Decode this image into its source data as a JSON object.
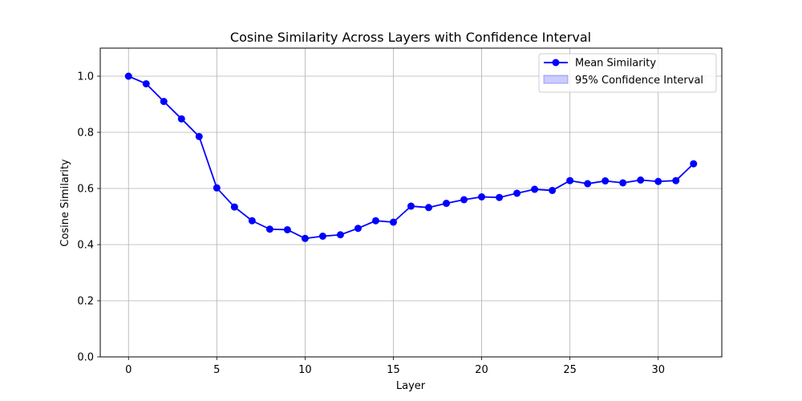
{
  "chart_data": {
    "type": "line",
    "title": "Cosine Similarity Across Layers with Confidence Interval",
    "xlabel": "Layer",
    "ylabel": "Cosine Similarity",
    "xlim": [
      -1.6,
      33.6
    ],
    "ylim": [
      0,
      1.1
    ],
    "xticks": [
      0,
      5,
      10,
      15,
      20,
      25,
      30
    ],
    "yticks": [
      0.0,
      0.2,
      0.4,
      0.6,
      0.8,
      1.0
    ],
    "xtick_labels": [
      "0",
      "5",
      "10",
      "15",
      "20",
      "25",
      "30"
    ],
    "ytick_labels": [
      "0.0",
      "0.2",
      "0.4",
      "0.6",
      "0.8",
      "1.0"
    ],
    "grid": true,
    "legend_position": "top-right",
    "x": [
      0,
      1,
      2,
      3,
      4,
      5,
      6,
      7,
      8,
      9,
      10,
      11,
      12,
      13,
      14,
      15,
      16,
      17,
      18,
      19,
      20,
      21,
      22,
      23,
      24,
      25,
      26,
      27,
      28,
      29,
      30,
      31,
      32
    ],
    "series": [
      {
        "name": "Mean Similarity",
        "color": "#0000ff",
        "marker": "circle",
        "values": [
          1.0,
          0.973,
          0.91,
          0.848,
          0.785,
          0.602,
          0.534,
          0.485,
          0.455,
          0.453,
          0.422,
          0.43,
          0.435,
          0.458,
          0.485,
          0.48,
          0.537,
          0.532,
          0.547,
          0.56,
          0.57,
          0.568,
          0.583,
          0.597,
          0.593,
          0.628,
          0.617,
          0.627,
          0.62,
          0.63,
          0.625,
          0.628,
          0.688
        ]
      }
    ],
    "confidence_band": {
      "name": "95% Confidence Interval",
      "color": "#0000ff",
      "lower": [
        1.0,
        0.973,
        0.91,
        0.848,
        0.785,
        0.602,
        0.534,
        0.485,
        0.455,
        0.453,
        0.422,
        0.43,
        0.435,
        0.458,
        0.485,
        0.48,
        0.537,
        0.532,
        0.547,
        0.56,
        0.57,
        0.568,
        0.583,
        0.597,
        0.593,
        0.628,
        0.617,
        0.627,
        0.62,
        0.63,
        0.625,
        0.628,
        0.688
      ],
      "upper": [
        1.0,
        0.973,
        0.91,
        0.848,
        0.785,
        0.602,
        0.534,
        0.485,
        0.455,
        0.453,
        0.422,
        0.43,
        0.435,
        0.458,
        0.485,
        0.48,
        0.537,
        0.532,
        0.547,
        0.56,
        0.57,
        0.568,
        0.583,
        0.597,
        0.593,
        0.628,
        0.617,
        0.627,
        0.62,
        0.63,
        0.625,
        0.628,
        0.688
      ]
    }
  }
}
